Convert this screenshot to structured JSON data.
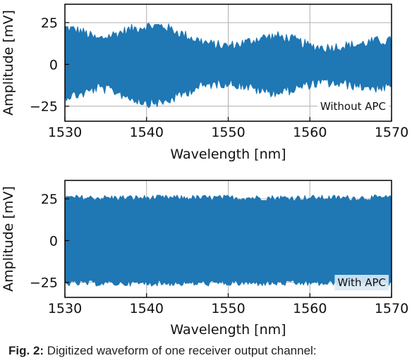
{
  "chart_data": [
    {
      "type": "area",
      "xlabel": "Wavelength [nm]",
      "ylabel": "Amplitude [mV]",
      "xlim": [
        1530,
        1570
      ],
      "ylim": [
        -34,
        36
      ],
      "xticks": [
        "1530",
        "1540",
        "1550",
        "1560",
        "1570"
      ],
      "yticks": [
        "25",
        "0",
        "−25"
      ],
      "annotation": "Without APC",
      "series": [
        {
          "color": "#1f77b4",
          "x": [
            1530,
            1532,
            1534,
            1536,
            1538,
            1540,
            1542,
            1544,
            1546,
            1548,
            1550,
            1552,
            1554,
            1556,
            1558,
            1560,
            1562,
            1564,
            1566,
            1568,
            1570
          ],
          "upper": [
            21,
            19,
            14,
            17,
            20,
            22,
            22,
            18,
            14,
            11,
            10,
            12,
            15,
            16,
            14,
            10,
            9,
            10,
            11,
            13,
            13
          ],
          "lower": [
            -18,
            -17,
            -13,
            -15,
            -19,
            -22,
            -22,
            -18,
            -13,
            -11,
            -10,
            -12,
            -15,
            -16,
            -14,
            -11,
            -10,
            -11,
            -12,
            -13,
            -13
          ]
        }
      ]
    },
    {
      "type": "area",
      "xlabel": "Wavelength [nm]",
      "ylabel": "Amplitude [mV]",
      "xlim": [
        1530,
        1570
      ],
      "ylim": [
        -34,
        36
      ],
      "xticks": [
        "1530",
        "1540",
        "1550",
        "1560",
        "1570"
      ],
      "yticks": [
        "25",
        "0",
        "−25"
      ],
      "annotation": "With APC",
      "series": [
        {
          "color": "#1f77b4",
          "x": [
            1530,
            1535,
            1540,
            1545,
            1550,
            1555,
            1560,
            1565,
            1570
          ],
          "upper": [
            25,
            25,
            25,
            25,
            25,
            25,
            25,
            25,
            25
          ],
          "lower": [
            -25,
            -25,
            -25,
            -25,
            -25,
            -25,
            -25,
            -25,
            -25
          ]
        }
      ]
    }
  ],
  "caption": {
    "lead": "Fig. 2:",
    "text": " Digitized waveform of one receiver output channel:"
  }
}
